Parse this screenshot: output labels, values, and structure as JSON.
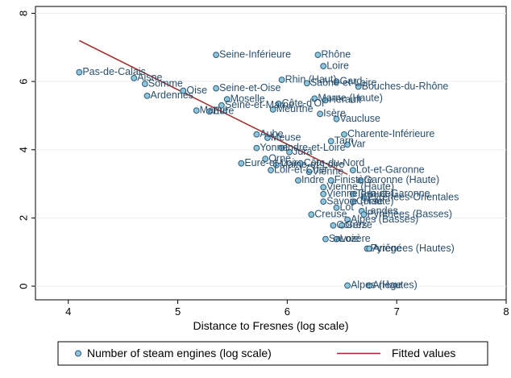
{
  "chart_data": {
    "type": "scatter",
    "title": "",
    "xlabel": "Distance to Fresnes (log scale)",
    "ylabel": "",
    "xlim": [
      3.7,
      8.0
    ],
    "ylim": [
      -0.4,
      8.2
    ],
    "xticks": [
      4,
      5,
      6,
      7,
      8
    ],
    "yticks": [
      0,
      2,
      4,
      6,
      8
    ],
    "grid": "horizontal",
    "legend_position": "bottom",
    "colors": {
      "background": "#ffffff",
      "gridline": "#e4eef3",
      "point_fill": "#8fc6da",
      "point_stroke": "#2c5a79",
      "label": "#2a4f6e",
      "fit_line": "#a02a2a",
      "legend_border": "#000000"
    },
    "series": [
      {
        "name": "Number of steam engines (log scale)",
        "kind": "points",
        "points": [
          {
            "label": "Pas-de-Calais",
            "x": 4.1,
            "y": 6.27
          },
          {
            "label": "Aisne",
            "x": 4.6,
            "y": 6.1
          },
          {
            "label": "Somme",
            "x": 4.7,
            "y": 5.93
          },
          {
            "label": "Oise",
            "x": 5.05,
            "y": 5.73
          },
          {
            "label": "Ardennes",
            "x": 4.72,
            "y": 5.58
          },
          {
            "label": "Marne",
            "x": 5.17,
            "y": 5.15
          },
          {
            "label": "Seine-Inférieure",
            "x": 5.35,
            "y": 6.78
          },
          {
            "label": "Seine-et-Oise",
            "x": 5.35,
            "y": 5.8
          },
          {
            "label": "Moselle",
            "x": 5.45,
            "y": 5.48
          },
          {
            "label": "Seine-et-Marne",
            "x": 5.4,
            "y": 5.3
          },
          {
            "label": "Eure",
            "x": 5.29,
            "y": 5.12
          },
          {
            "label": "Rhône",
            "x": 6.28,
            "y": 6.78
          },
          {
            "label": "Loire",
            "x": 6.33,
            "y": 6.45
          },
          {
            "label": "Rhin (Haut)",
            "x": 5.95,
            "y": 6.05
          },
          {
            "label": "Saône-et-Loire",
            "x": 6.18,
            "y": 5.95
          },
          {
            "label": "Gard",
            "x": 6.45,
            "y": 6.0
          },
          {
            "label": "Bouches-du-Rhône",
            "x": 6.65,
            "y": 5.85
          },
          {
            "label": "Marne (Haute)",
            "x": 6.25,
            "y": 5.5
          },
          {
            "label": "Hérault",
            "x": 6.35,
            "y": 5.45
          },
          {
            "label": "Côte-d'Or",
            "x": 5.92,
            "y": 5.35
          },
          {
            "label": "Meurthe",
            "x": 5.87,
            "y": 5.18
          },
          {
            "label": "Isère",
            "x": 6.3,
            "y": 5.05
          },
          {
            "label": "Vaucluse",
            "x": 6.45,
            "y": 4.9
          },
          {
            "label": "Aube",
            "x": 5.72,
            "y": 4.45
          },
          {
            "label": "Meuse",
            "x": 5.82,
            "y": 4.35
          },
          {
            "label": "Tarn",
            "x": 6.4,
            "y": 4.25
          },
          {
            "label": "Var",
            "x": 6.55,
            "y": 4.15
          },
          {
            "label": "Charente-Inférieure",
            "x": 6.52,
            "y": 4.45
          },
          {
            "label": "Yonne",
            "x": 5.72,
            "y": 4.05
          },
          {
            "label": "Indre-et-Loire",
            "x": 5.95,
            "y": 4.05
          },
          {
            "label": "Jura",
            "x": 6.02,
            "y": 3.93
          },
          {
            "label": "Orne",
            "x": 5.8,
            "y": 3.73
          },
          {
            "label": "Eure-et-Loir",
            "x": 5.58,
            "y": 3.6
          },
          {
            "label": "Maine-et-Loire",
            "x": 5.9,
            "y": 3.55
          },
          {
            "label": "Côte-du-Nord",
            "x": 6.12,
            "y": 3.6
          },
          {
            "label": "Loir-et-Cher",
            "x": 5.85,
            "y": 3.4
          },
          {
            "label": "Vienne",
            "x": 6.2,
            "y": 3.35
          },
          {
            "label": "Lot-et-Garonne",
            "x": 6.6,
            "y": 3.4
          },
          {
            "label": "Indre",
            "x": 6.1,
            "y": 3.1
          },
          {
            "label": "Finistère",
            "x": 6.4,
            "y": 3.1
          },
          {
            "label": "Garonne (Haute)",
            "x": 6.67,
            "y": 3.1
          },
          {
            "label": "Vienne (Haute)",
            "x": 6.33,
            "y": 2.9
          },
          {
            "label": "Vienne (Haute)",
            "x": 6.33,
            "y": 2.7
          },
          {
            "label": "Tarn-et-Garonne",
            "x": 6.6,
            "y": 2.7
          },
          {
            "label": "Pyrénées-Orientales",
            "x": 6.7,
            "y": 2.6
          },
          {
            "label": "Savoie (Haute)",
            "x": 6.33,
            "y": 2.48
          },
          {
            "label": "Corse",
            "x": 6.6,
            "y": 2.48
          },
          {
            "label": "Lot",
            "x": 6.45,
            "y": 2.3
          },
          {
            "label": "Landes",
            "x": 6.68,
            "y": 2.2
          },
          {
            "label": "Creuse",
            "x": 6.22,
            "y": 2.1
          },
          {
            "label": "Pyrénées (Basses)",
            "x": 6.7,
            "y": 2.1
          },
          {
            "label": "Alpes (Basses)",
            "x": 6.55,
            "y": 1.95
          },
          {
            "label": "Corrèze",
            "x": 6.42,
            "y": 1.78
          },
          {
            "label": "Gers",
            "x": 6.5,
            "y": 1.78
          },
          {
            "label": "Savoie",
            "x": 6.35,
            "y": 1.38
          },
          {
            "label": "Lozère",
            "x": 6.45,
            "y": 1.38
          },
          {
            "label": "Pyrénées (Hautes)",
            "x": 6.73,
            "y": 1.1
          },
          {
            "label": "Ariège",
            "x": 6.75,
            "y": 1.1
          },
          {
            "label": "Alpes (Hautes)",
            "x": 6.55,
            "y": 0.02
          },
          {
            "label": "Ariège",
            "x": 6.75,
            "y": 0.02
          }
        ]
      },
      {
        "name": "Fitted values",
        "kind": "line",
        "x": [
          4.1,
          6.55
        ],
        "y": [
          7.2,
          3.28
        ]
      }
    ]
  }
}
